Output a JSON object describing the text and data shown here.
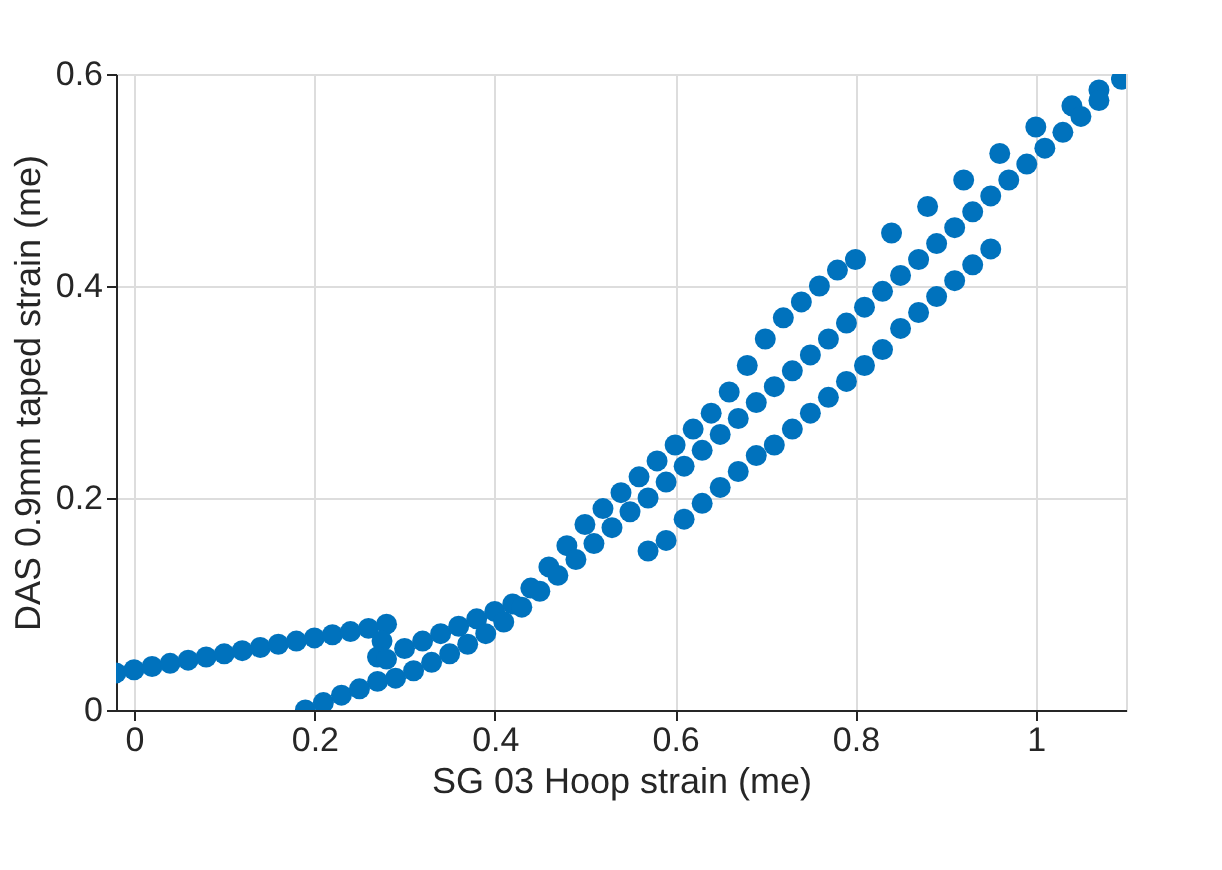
{
  "chart_data": {
    "type": "scatter",
    "xlabel": "SG 03 Hoop strain (me)",
    "ylabel": "DAS 0.9mm taped strain (me)",
    "xlim": [
      -0.02,
      1.1
    ],
    "ylim": [
      0,
      0.6
    ],
    "xticks": [
      0,
      0.2,
      0.4,
      0.6,
      0.8,
      1
    ],
    "yticks": [
      0,
      0.2,
      0.4,
      0.6
    ],
    "grid": true,
    "marker": "circle",
    "series": [
      {
        "color": "#0072bd",
        "x": [
          -0.02,
          0,
          0.02,
          0.04,
          0.06,
          0.08,
          0.1,
          0.12,
          0.14,
          0.16,
          0.18,
          0.2,
          0.22,
          0.24,
          0.26,
          0.28,
          0.275,
          0.27,
          0.28,
          0.3,
          0.32,
          0.34,
          0.36,
          0.38,
          0.4,
          0.42,
          0.44,
          0.46,
          0.48,
          0.5,
          0.52,
          0.54,
          0.56,
          0.58,
          0.6,
          0.62,
          0.64,
          0.66,
          0.68,
          0.7,
          0.72,
          0.74,
          0.76,
          0.78,
          0.8,
          0.84,
          0.88,
          0.92,
          0.96,
          1.0,
          1.04,
          1.07,
          1.095,
          0.19,
          0.21,
          0.23,
          0.25,
          0.27,
          0.29,
          0.31,
          0.33,
          0.35,
          0.37,
          0.39,
          0.41,
          0.43,
          0.45,
          0.47,
          0.49,
          0.51,
          0.53,
          0.55,
          0.57,
          0.59,
          0.61,
          0.63,
          0.65,
          0.67,
          0.69,
          0.71,
          0.73,
          0.75,
          0.77,
          0.79,
          0.81,
          0.83,
          0.85,
          0.87,
          0.89,
          0.91,
          0.93,
          0.95,
          0.97,
          0.99,
          1.01,
          1.03,
          1.05,
          1.07,
          0.57,
          0.59,
          0.61,
          0.63,
          0.65,
          0.67,
          0.69,
          0.71,
          0.73,
          0.75,
          0.77,
          0.79,
          0.81,
          0.83,
          0.85,
          0.87,
          0.89,
          0.91,
          0.93,
          0.95
        ],
        "values": [
          0.035,
          0.038,
          0.041,
          0.044,
          0.047,
          0.05,
          0.053,
          0.056,
          0.059,
          0.062,
          0.065,
          0.068,
          0.071,
          0.074,
          0.077,
          0.081,
          0.065,
          0.05,
          0.048,
          0.058,
          0.065,
          0.072,
          0.079,
          0.086,
          0.093,
          0.1,
          0.115,
          0.135,
          0.155,
          0.175,
          0.19,
          0.205,
          0.22,
          0.235,
          0.25,
          0.265,
          0.28,
          0.3,
          0.325,
          0.35,
          0.37,
          0.385,
          0.4,
          0.415,
          0.425,
          0.45,
          0.475,
          0.5,
          0.525,
          0.55,
          0.57,
          0.585,
          0.595,
          0.0,
          0.007,
          0.014,
          0.02,
          0.027,
          0.03,
          0.037,
          0.045,
          0.053,
          0.062,
          0.072,
          0.083,
          0.097,
          0.112,
          0.127,
          0.142,
          0.157,
          0.172,
          0.187,
          0.2,
          0.215,
          0.23,
          0.245,
          0.26,
          0.275,
          0.29,
          0.305,
          0.32,
          0.335,
          0.35,
          0.365,
          0.38,
          0.395,
          0.41,
          0.425,
          0.44,
          0.455,
          0.47,
          0.485,
          0.5,
          0.515,
          0.53,
          0.545,
          0.56,
          0.575,
          0.15,
          0.16,
          0.18,
          0.195,
          0.21,
          0.225,
          0.24,
          0.25,
          0.265,
          0.28,
          0.295,
          0.31,
          0.325,
          0.34,
          0.36,
          0.375,
          0.39,
          0.405,
          0.42,
          0.435
        ]
      }
    ]
  }
}
